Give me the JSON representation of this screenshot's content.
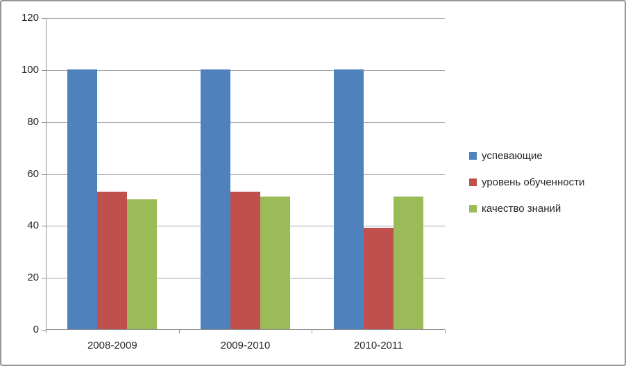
{
  "figure": {
    "background": "#FFFFFF",
    "border_color": "#969696"
  },
  "axes": {
    "text_color": "#262626",
    "gridline_color": "#A6A6A6",
    "axis_line_color": "#8E8E8E"
  },
  "chart_data": {
    "type": "bar",
    "title": "",
    "xlabel": "",
    "ylabel": "",
    "categories": [
      "2008-2009",
      "2009-2010",
      "2010-2011"
    ],
    "series": [
      {
        "name": "успевающие",
        "color": "#4F81BD",
        "values": [
          100,
          100,
          100
        ]
      },
      {
        "name": "уровень обученности",
        "color": "#C0504D",
        "values": [
          53,
          53,
          39
        ]
      },
      {
        "name": "качество знаний",
        "color": "#9BBB59",
        "values": [
          50,
          51,
          51
        ]
      }
    ],
    "ylim": [
      0,
      120
    ],
    "ytick_step": 20,
    "yticks": [
      0,
      20,
      40,
      60,
      80,
      100,
      120
    ],
    "grid": true,
    "legend_position": "right"
  }
}
